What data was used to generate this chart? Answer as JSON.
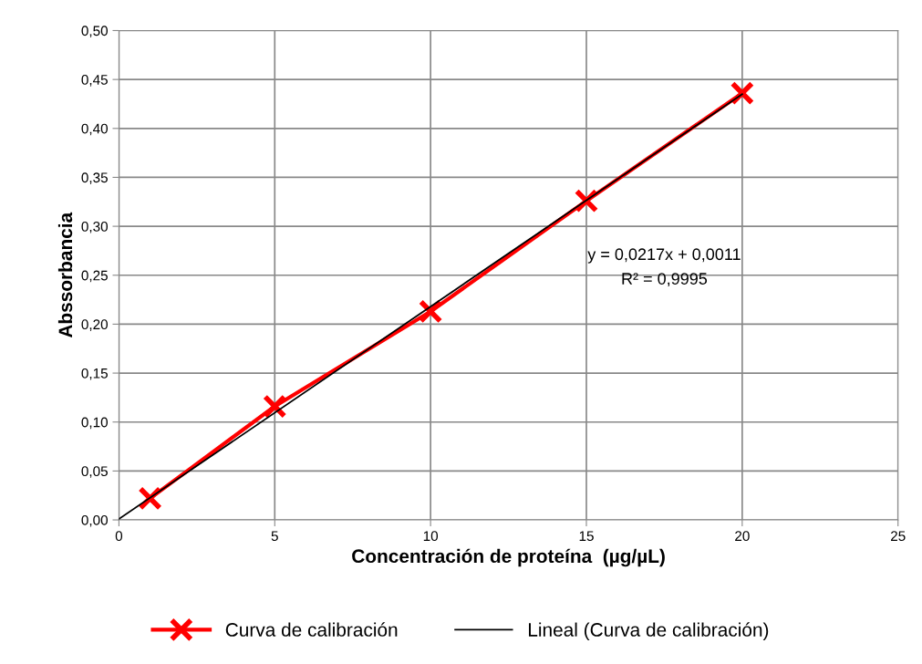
{
  "chart_data": {
    "type": "line",
    "xlabel": "Concentración de proteína  (µg/µL)",
    "ylabel": "Abssorbancia",
    "series": [
      {
        "name": "Curva de calibración",
        "color": "#ff0000",
        "x": [
          1,
          5,
          10,
          15,
          20
        ],
        "values": [
          0.022,
          0.116,
          0.213,
          0.326,
          0.436
        ],
        "marker": "cross"
      },
      {
        "name": "Lineal (Curva de calibración)",
        "color": "#000000",
        "x": [
          0,
          20
        ],
        "values": [
          0.001,
          0.435
        ]
      }
    ],
    "annotations": [
      "y = 0,0217x + 0,0011",
      "R² = 0,9995"
    ],
    "xlim": [
      0,
      25
    ],
    "xticks": [
      0,
      5,
      10,
      15,
      20,
      25
    ],
    "ylim": [
      0,
      0.5
    ],
    "yticks": [
      {
        "value": 0,
        "label": "0,00"
      },
      {
        "value": 0.05,
        "label": "0,05"
      },
      {
        "value": 0.1,
        "label": "0,10"
      },
      {
        "value": 0.15,
        "label": "0,15"
      },
      {
        "value": 0.2,
        "label": "0,20"
      },
      {
        "value": 0.25,
        "label": "0,25"
      },
      {
        "value": 0.3,
        "label": "0,30"
      },
      {
        "value": 0.35,
        "label": "0,35"
      },
      {
        "value": 0.4,
        "label": "0,40"
      },
      {
        "value": 0.45,
        "label": "0,45"
      },
      {
        "value": 0.5,
        "label": "0,50"
      }
    ],
    "grid": true,
    "legend": "bottom"
  }
}
